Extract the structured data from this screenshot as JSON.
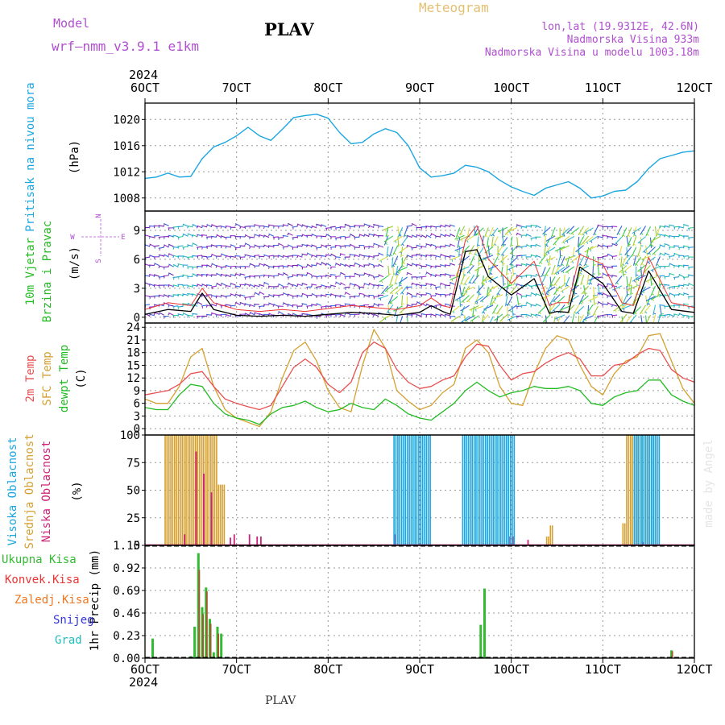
{
  "header": {
    "model_label": "Model",
    "model_name": "wrf—nmm_v3.9.1  e1km",
    "station": "PLAV",
    "product": "Meteogram",
    "coords": "lon,lat (19.9312E, 42.6N)",
    "elevation": "Nadmorska Visina 933m",
    "model_elevation": "Nadmorska Visina u modelu 1003.18m",
    "year_top": "2024",
    "year_bottom": "2024",
    "footer_station": "PLAV",
    "watermark": "made by Angel"
  },
  "colors": {
    "pressure": "#1ba6e0",
    "wind_label": "#22bb22",
    "wind_speed": "#000000",
    "gust": "#ee3333",
    "t2m": "#e85050",
    "tsfc": "#d4a030",
    "dewpt": "#22bb22",
    "cloud_high": "#1ba6e0",
    "cloud_mid": "#d4a030",
    "cloud_low": "#cc2277",
    "rain_total": "#33bb33",
    "rain_conv": "#ee3333",
    "rain_frozen": "#ee7722",
    "snow": "#3333dd",
    "hail": "#22bbbb",
    "axis_text": "#000000",
    "grid": "#999999",
    "purple": "#b04fd0"
  },
  "chart_data": [
    {
      "type": "line",
      "panel": "pressure",
      "ylabel_lines": [
        "Pritisak na nivou mora",
        "(hPa)"
      ],
      "ylim": [
        1006,
        1022.5
      ],
      "yticks": [
        1008,
        1012,
        1016,
        1020
      ],
      "x": [
        0,
        3,
        6,
        9,
        12,
        15,
        18,
        21,
        24,
        27,
        30,
        33,
        36,
        39,
        42,
        45,
        48,
        51,
        54,
        57,
        60,
        63,
        66,
        69,
        72,
        75,
        78,
        81,
        84,
        87,
        90,
        93,
        96,
        99,
        102,
        105,
        108,
        111,
        114,
        117,
        120,
        123,
        126,
        129,
        132,
        135,
        138,
        141,
        144
      ],
      "series": [
        {
          "values": [
            1011,
            1011.2,
            1011.8,
            1011.2,
            1011.3,
            1014,
            1015.8,
            1016.5,
            1017.5,
            1018.8,
            1017.5,
            1016.8,
            1018.5,
            1020.3,
            1020.6,
            1020.8,
            1020.2,
            1018,
            1016.3,
            1016.5,
            1017.8,
            1018.6,
            1018,
            1016,
            1012.6,
            1011.2,
            1011.4,
            1011.8,
            1013,
            1012.7,
            1012,
            1010.7,
            1009.7,
            1009,
            1008.4,
            1009.5,
            1010,
            1010.5,
            1009.5,
            1008,
            1008.3,
            1009,
            1009.2,
            1010.5,
            1012.5,
            1014,
            1014.5,
            1015,
            1015.2
          ]
        }
      ]
    },
    {
      "type": "line",
      "panel": "wind",
      "ylabel_lines": [
        "10m Vjetar",
        "Brzina i Pravac",
        "(m/s)"
      ],
      "compass": [
        "N",
        "E",
        "S",
        "W"
      ],
      "ylim": [
        -0.6,
        11
      ],
      "yticks": [
        0,
        3,
        6,
        9
      ],
      "x": [
        0,
        6,
        12,
        15,
        18,
        24,
        30,
        36,
        42,
        48,
        54,
        60,
        66,
        72,
        75,
        78,
        80,
        84,
        87,
        90,
        96,
        102,
        106,
        108,
        111,
        114,
        120,
        125,
        128,
        132,
        138,
        144
      ],
      "series": [
        {
          "values": [
            0.3,
            0.8,
            0.6,
            2.5,
            0.8,
            0.2,
            0.1,
            0.2,
            0.1,
            0.3,
            0.5,
            0.4,
            0.2,
            0.5,
            1.2,
            0.6,
            0.3,
            6.8,
            7,
            4.2,
            2.3,
            4,
            0.4,
            0.6,
            0.5,
            5.2,
            3.5,
            0.6,
            0.4,
            4.8,
            0.8,
            0.5
          ]
        },
        {
          "values": [
            0.8,
            1.5,
            1.2,
            3,
            1.5,
            0.8,
            0.6,
            0.8,
            0.6,
            0.9,
            1.2,
            1,
            0.8,
            1.2,
            2,
            1.2,
            1,
            8,
            9.5,
            6,
            3.5,
            5.8,
            1.2,
            1.5,
            1.5,
            6.5,
            5.5,
            1.5,
            1.2,
            6.2,
            1.5,
            1
          ]
        }
      ]
    },
    {
      "type": "line",
      "panel": "temperature",
      "ylabel_lines": [
        "2m Temp",
        "SFC Temp",
        "dewpt Temp",
        "(C)"
      ],
      "ylim": [
        -1.5,
        25
      ],
      "yticks": [
        0,
        3,
        6,
        9,
        12,
        15,
        18,
        21,
        24
      ],
      "x": [
        0,
        3,
        6,
        9,
        12,
        15,
        18,
        21,
        24,
        27,
        30,
        33,
        36,
        39,
        42,
        45,
        48,
        51,
        54,
        57,
        60,
        63,
        66,
        69,
        72,
        75,
        78,
        81,
        84,
        87,
        90,
        93,
        96,
        99,
        102,
        105,
        108,
        111,
        114,
        117,
        120,
        123,
        126,
        129,
        132,
        135,
        138,
        141,
        144
      ],
      "series": [
        {
          "values": [
            8,
            8.5,
            9,
            10.5,
            13,
            13.5,
            10,
            7,
            6,
            5.2,
            4.5,
            5.5,
            10,
            14.5,
            16.5,
            14.5,
            10.5,
            8.5,
            11,
            18,
            20.5,
            19,
            14,
            11,
            9.5,
            10,
            11.5,
            12.5,
            17,
            20,
            19.5,
            15,
            11.5,
            13,
            13.5,
            15.5,
            17,
            18,
            16.5,
            12.5,
            12.5,
            15,
            15.5,
            17.5,
            19,
            18.5,
            14,
            12,
            11
          ]
        },
        {
          "values": [
            7,
            6,
            6,
            10,
            17,
            19,
            10,
            4.5,
            2.5,
            1.5,
            0.5,
            4,
            12,
            18.5,
            20.5,
            16,
            9,
            5,
            4,
            15,
            23.5,
            19,
            9,
            6.5,
            4.5,
            5.5,
            8.5,
            10.5,
            19,
            21,
            18,
            10,
            6,
            5.5,
            13,
            19,
            22,
            21,
            15,
            10,
            8,
            13,
            16,
            17,
            22,
            22.5,
            16,
            9.5,
            6
          ]
        },
        {
          "values": [
            5,
            4.5,
            4.5,
            8,
            10.5,
            10,
            6,
            3.5,
            2.5,
            2,
            1,
            3.5,
            5,
            5.5,
            6.5,
            5,
            4,
            4.5,
            6,
            5,
            4.5,
            7,
            5.5,
            3.5,
            2.5,
            2,
            4,
            6,
            9,
            11,
            9,
            7.5,
            8.5,
            9,
            10,
            9.5,
            9.5,
            10,
            9,
            6,
            5.5,
            7.5,
            8.5,
            9,
            11.5,
            11.5,
            8,
            6.5,
            5.5
          ]
        }
      ]
    },
    {
      "type": "bar",
      "panel": "clouds",
      "ylabel_lines": [
        "Visoka Oblacnost",
        "Srednja Oblacnost",
        "Niska Oblacnost",
        "(%)"
      ],
      "ylim": [
        0,
        100
      ],
      "yticks": [
        0,
        25,
        50,
        75,
        100
      ],
      "series": [
        {
          "name": "Srednja Oblacnost",
          "ranges": [
            [
              5,
              19,
              100
            ],
            [
              19,
              21,
              55
            ],
            [
              105,
              106,
              8
            ],
            [
              106,
              107,
              18
            ],
            [
              125,
              126,
              20
            ],
            [
              126,
              134,
              100
            ]
          ]
        },
        {
          "name": "Niska Oblacnost",
          "bars": [
            [
              10,
              10
            ],
            [
              13,
              85
            ],
            [
              15,
              65
            ],
            [
              17,
              48
            ],
            [
              22,
              7
            ],
            [
              23,
              10
            ],
            [
              27,
              10
            ],
            [
              29,
              8
            ],
            [
              30,
              8
            ],
            [
              65,
              10
            ],
            [
              95,
              8
            ],
            [
              96,
              8
            ],
            [
              100,
              5
            ],
            [
              130,
              3
            ]
          ]
        },
        {
          "name": "Visoka Oblacnost",
          "ranges": [
            [
              65,
              75,
              100
            ],
            [
              83,
              97,
              100
            ],
            [
              128,
              135,
              100
            ]
          ]
        }
      ]
    },
    {
      "type": "bar",
      "panel": "precipitation",
      "ylabel_lines": [
        "1hr Precip (mm)"
      ],
      "legend": [
        "Ukupna Kisa",
        "Konvek.Kisa",
        "Zaledj.Kisa",
        "Snijeg",
        "Grad"
      ],
      "ylim": [
        0,
        1.15
      ],
      "yticks": [
        0,
        0.23,
        0.46,
        0.69,
        0.92,
        1.15
      ],
      "series": [
        {
          "name": "Ukupna Kisa",
          "bars": [
            [
              2,
              0.2
            ],
            [
              12,
              0.02
            ],
            [
              13,
              0.32
            ],
            [
              14,
              1.07
            ],
            [
              15,
              0.52
            ],
            [
              16,
              0.72
            ],
            [
              17,
              0.4
            ],
            [
              18,
              0.06
            ],
            [
              19,
              0.32
            ],
            [
              20,
              0.25
            ],
            [
              88,
              0.34
            ],
            [
              89,
              0.71
            ],
            [
              138,
              0.08
            ]
          ]
        },
        {
          "name": "Konvek.Kisa",
          "bars": [
            [
              14,
              0.9
            ],
            [
              15,
              0.45
            ],
            [
              16,
              0.68
            ],
            [
              17,
              0.35
            ],
            [
              19,
              0.25
            ],
            [
              138,
              0.07
            ]
          ]
        }
      ]
    }
  ],
  "x_axis": {
    "ticks": [
      {
        "h": 0,
        "label": "6OCT"
      },
      {
        "h": 24,
        "label": "7OCT"
      },
      {
        "h": 48,
        "label": "8OCT"
      },
      {
        "h": 72,
        "label": "9OCT"
      },
      {
        "h": 96,
        "label": "10OCT"
      },
      {
        "h": 120,
        "label": "11OCT"
      },
      {
        "h": 144,
        "label": "12OCT"
      }
    ]
  }
}
